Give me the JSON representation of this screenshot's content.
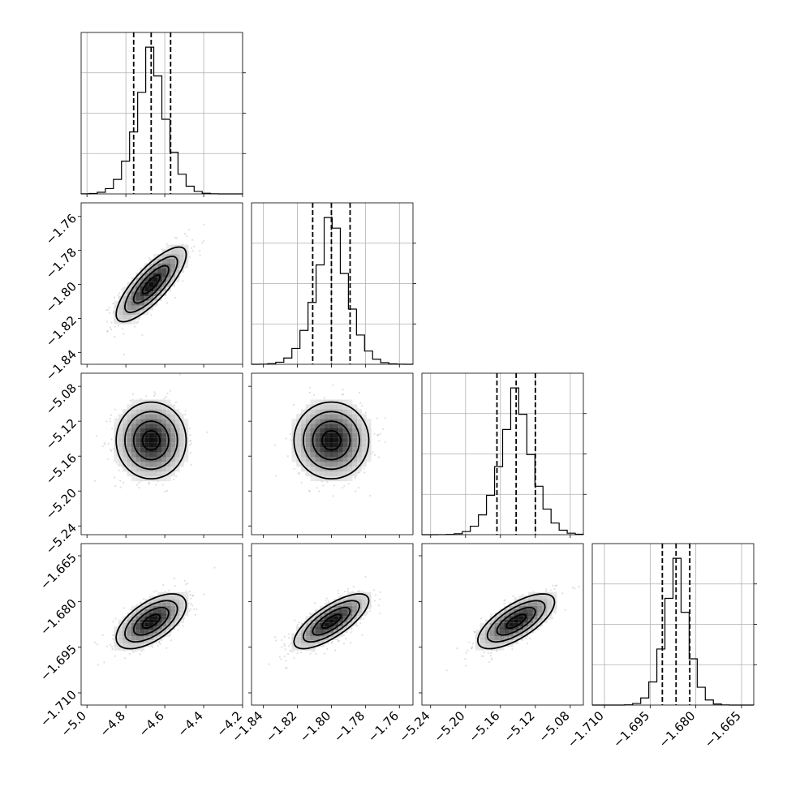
{
  "chart_data": {
    "type": "corner",
    "parameters": [
      {
        "median": -4.67,
        "sigma": 0.09,
        "q16": -4.76,
        "q84": -4.57,
        "lim": [
          -5.03,
          -4.2
        ],
        "ticks": [
          -5.0,
          -4.8,
          -4.6,
          -4.4,
          -4.2
        ],
        "tick_labels": [
          "−5.0",
          "−4.8",
          "−4.6",
          "−4.4",
          "−4.2"
        ]
      },
      {
        "median": -1.8,
        "sigma": 0.011,
        "q16": -1.811,
        "q84": -1.789,
        "lim": [
          -1.847,
          -1.752
        ],
        "ticks": [
          -1.84,
          -1.82,
          -1.8,
          -1.78,
          -1.76
        ],
        "tick_labels": [
          "−1.84",
          "−1.82",
          "−1.80",
          "−1.78",
          "−1.76"
        ]
      },
      {
        "median": -5.142,
        "sigma": 0.022,
        "q16": -5.164,
        "q84": -5.12,
        "lim": [
          -5.25,
          -5.065
        ],
        "ticks": [
          -5.24,
          -5.2,
          -5.16,
          -5.12,
          -5.08
        ],
        "tick_labels": [
          "−5.24",
          "−5.20",
          "−5.16",
          "−5.12",
          "−5.08"
        ]
      },
      {
        "median": -1.6865,
        "sigma": 0.0045,
        "q16": -1.691,
        "q84": -1.682,
        "lim": [
          -1.714,
          -1.661
        ],
        "ticks": [
          -1.71,
          -1.695,
          -1.68,
          -1.665
        ],
        "tick_labels": [
          "−1.710",
          "−1.695",
          "−1.680",
          "−1.665"
        ]
      }
    ],
    "correlations": [
      [
        1.0,
        0.8,
        0.0,
        0.6
      ],
      [
        0.8,
        1.0,
        0.0,
        0.75
      ],
      [
        0.0,
        0.0,
        1.0,
        0.7
      ],
      [
        0.6,
        0.75,
        0.7,
        1.0
      ]
    ],
    "histogram_bins": 20,
    "quantiles": [
      0.16,
      0.5,
      0.84
    ],
    "grid": true,
    "title": "",
    "xlabel": "",
    "ylabel": ""
  }
}
